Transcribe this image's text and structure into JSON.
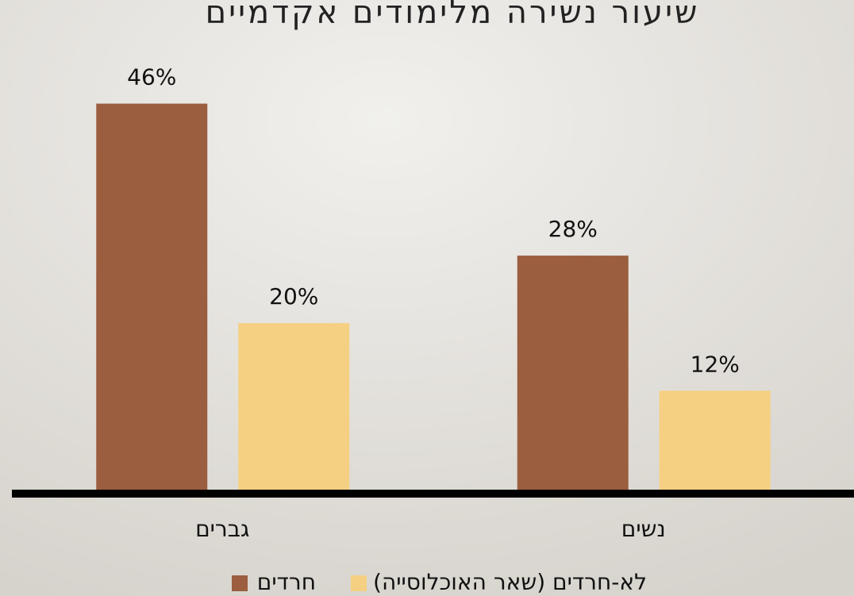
{
  "chart_data": {
    "type": "bar",
    "title": "שיעור נשירה מלימודים אקדמיים",
    "categories": [
      "גברים",
      "נשים"
    ],
    "series": [
      {
        "name": "חרדים",
        "color": "#9b5f40",
        "values": [
          46,
          28
        ],
        "value_labels": [
          "46%",
          "28%"
        ]
      },
      {
        "name": "לא-חרדים (שאר האוכלוסייה)",
        "color": "#f5d082",
        "values": [
          20,
          12
        ],
        "value_labels": [
          "20%",
          "12%"
        ]
      }
    ],
    "ylim": [
      0,
      50
    ],
    "grid": false
  }
}
